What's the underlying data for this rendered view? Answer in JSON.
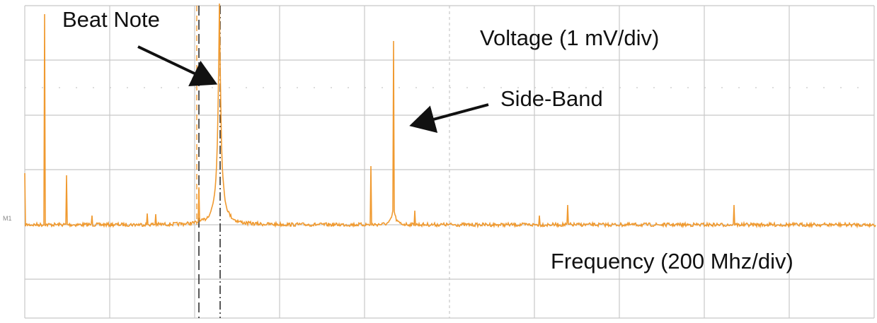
{
  "annotations": {
    "beat_note": "Beat Note",
    "voltage": "Voltage (1 mV/div)",
    "side_band": "Side-Band",
    "frequency": "Frequency (200 Mhz/div)",
    "marker": "M1"
  }
}
